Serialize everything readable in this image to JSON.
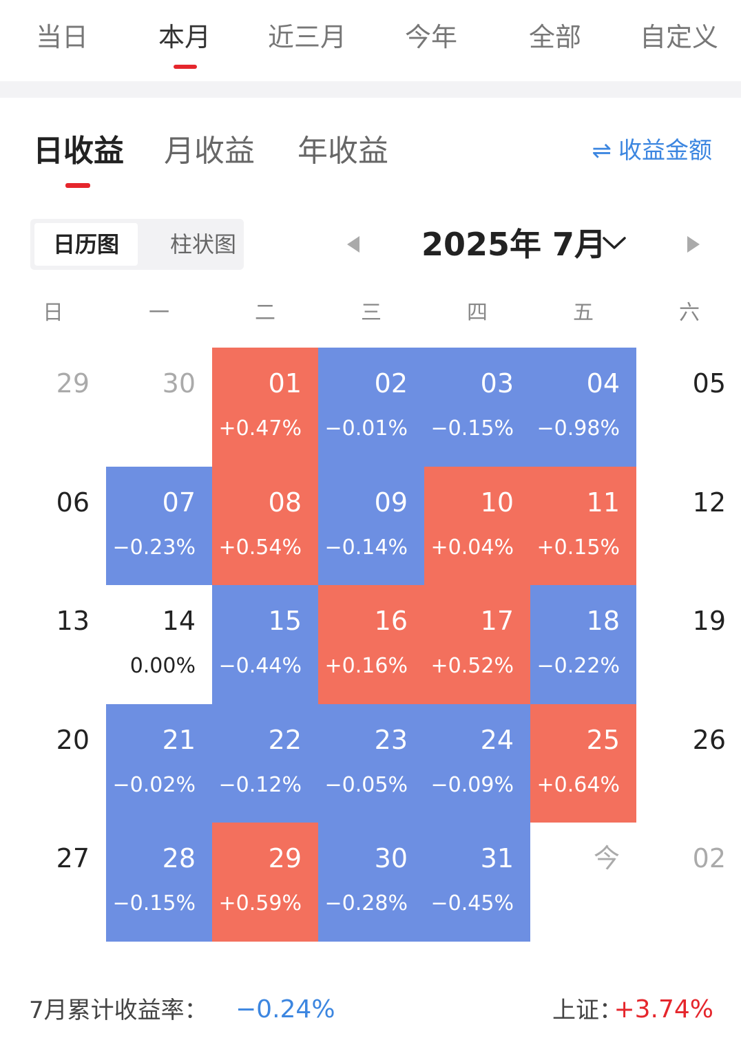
{
  "period_tabs": [
    {
      "label": "当日"
    },
    {
      "label": "本月",
      "active": true
    },
    {
      "label": "近三月"
    },
    {
      "label": "今年"
    },
    {
      "label": "全部"
    },
    {
      "label": "自定义"
    }
  ],
  "earning_tabs": [
    {
      "label": "日收益",
      "active": true
    },
    {
      "label": "月收益"
    },
    {
      "label": "年收益"
    }
  ],
  "toggle": {
    "icon": "swap-arrows-icon",
    "label": "收益金额"
  },
  "view_switch": {
    "calendar_label": "日历图",
    "bar_label": "柱状图",
    "active": "calendar"
  },
  "month_nav": {
    "label": "2025年 7月"
  },
  "weekdays": [
    "日",
    "一",
    "二",
    "三",
    "四",
    "五",
    "六"
  ],
  "colors": {
    "up": "#f3705d",
    "down": "#6d8fe2",
    "accent_red": "#e5262c",
    "accent_blue": "#3c86e0"
  },
  "calendar": [
    [
      {
        "day": "29",
        "muted": true
      },
      {
        "day": "30",
        "muted": true
      },
      {
        "day": "01",
        "pct": "+0.47%",
        "dir": "up"
      },
      {
        "day": "02",
        "pct": "−0.01%",
        "dir": "down"
      },
      {
        "day": "03",
        "pct": "−0.15%",
        "dir": "down"
      },
      {
        "day": "04",
        "pct": "−0.98%",
        "dir": "down"
      },
      {
        "day": "05"
      }
    ],
    [
      {
        "day": "06"
      },
      {
        "day": "07",
        "pct": "−0.23%",
        "dir": "down"
      },
      {
        "day": "08",
        "pct": "+0.54%",
        "dir": "up"
      },
      {
        "day": "09",
        "pct": "−0.14%",
        "dir": "down"
      },
      {
        "day": "10",
        "pct": "+0.04%",
        "dir": "up"
      },
      {
        "day": "11",
        "pct": "+0.15%",
        "dir": "up"
      },
      {
        "day": "12"
      }
    ],
    [
      {
        "day": "13"
      },
      {
        "day": "14",
        "pct": "0.00%",
        "dir": "flat"
      },
      {
        "day": "15",
        "pct": "−0.44%",
        "dir": "down"
      },
      {
        "day": "16",
        "pct": "+0.16%",
        "dir": "up"
      },
      {
        "day": "17",
        "pct": "+0.52%",
        "dir": "up"
      },
      {
        "day": "18",
        "pct": "−0.22%",
        "dir": "down"
      },
      {
        "day": "19"
      }
    ],
    [
      {
        "day": "20"
      },
      {
        "day": "21",
        "pct": "−0.02%",
        "dir": "down"
      },
      {
        "day": "22",
        "pct": "−0.12%",
        "dir": "down"
      },
      {
        "day": "23",
        "pct": "−0.05%",
        "dir": "down"
      },
      {
        "day": "24",
        "pct": "−0.09%",
        "dir": "down"
      },
      {
        "day": "25",
        "pct": "+0.64%",
        "dir": "up"
      },
      {
        "day": "26"
      }
    ],
    [
      {
        "day": "27"
      },
      {
        "day": "28",
        "pct": "−0.15%",
        "dir": "down"
      },
      {
        "day": "29",
        "pct": "+0.59%",
        "dir": "up"
      },
      {
        "day": "30",
        "pct": "−0.28%",
        "dir": "down"
      },
      {
        "day": "31",
        "pct": "−0.45%",
        "dir": "down"
      },
      {
        "day": "今",
        "muted": true
      },
      {
        "day": "02",
        "muted": true
      }
    ]
  ],
  "summary": {
    "label": "7月累计收益率：",
    "value": "−0.24%",
    "index_label": "上证：",
    "index_value": "+3.74%"
  }
}
